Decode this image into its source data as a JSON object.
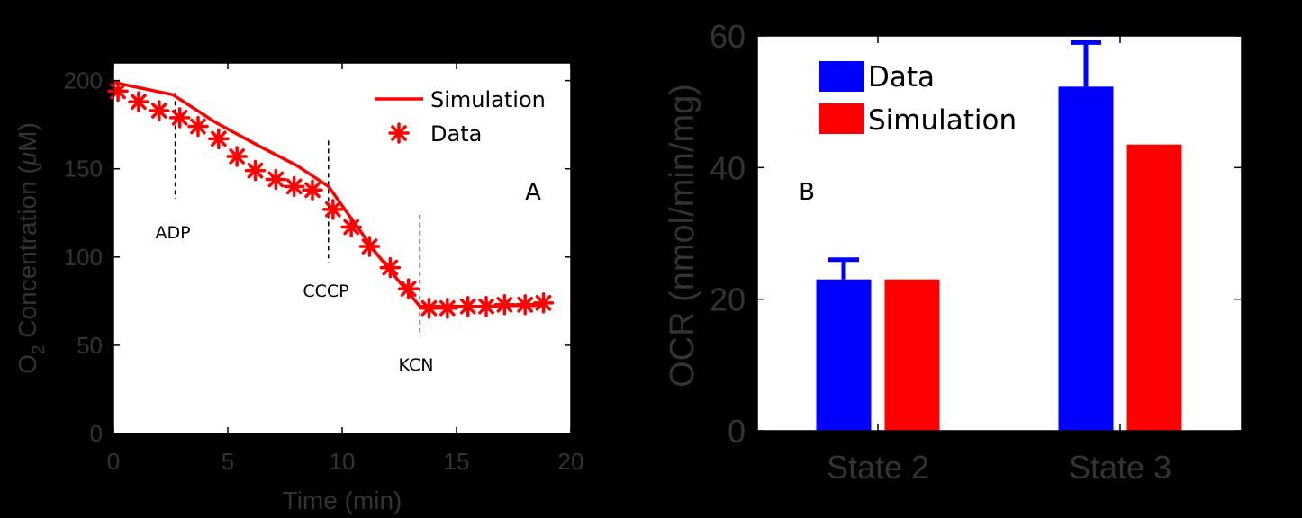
{
  "colors": {
    "background": "#000000",
    "plot_bg": "#ffffff",
    "axis_text": "#333333",
    "data_blue": "#0000ff",
    "sim_red": "#ff0000",
    "marker_red": "#ff0000"
  },
  "chart_data": [
    {
      "type": "line",
      "panel_label": "A",
      "xlabel": "Time (min)",
      "ylabel_parts": {
        "o": "O",
        "sub": "2",
        "rest": " Concentration (",
        "mu": "μ",
        "unit": "M)"
      },
      "xlim": [
        0,
        20
      ],
      "ylim": [
        0,
        210
      ],
      "x_ticks": [
        "0",
        "5",
        "10",
        "15",
        "20"
      ],
      "y_ticks": [
        "0",
        "50",
        "100",
        "150",
        "200"
      ],
      "grid": false,
      "legend_position": "top-right",
      "series": [
        {
          "name": "Simulation",
          "style": "line",
          "x": [
            0,
            2.6,
            4.5,
            6.5,
            8.0,
            9.4,
            10.5,
            11.5,
            12.5,
            13.4,
            14.5,
            16,
            17.5,
            18.8
          ],
          "y": [
            199,
            192,
            176,
            162,
            152,
            140,
            120,
            102,
            86,
            72,
            72,
            72,
            72.5,
            72.5
          ]
        },
        {
          "name": "Data",
          "style": "star-marker",
          "x": [
            0.2,
            1.1,
            2.0,
            2.9,
            3.7,
            4.6,
            5.4,
            6.2,
            7.1,
            7.9,
            8.7,
            9.6,
            10.4,
            11.2,
            12.1,
            12.9,
            13.8,
            14.6,
            15.5,
            16.3,
            17.1,
            18.0,
            18.8
          ],
          "y": [
            194,
            188,
            183,
            179,
            174,
            167,
            157,
            149,
            144,
            140,
            138,
            127,
            117,
            106,
            94,
            82,
            71,
            71,
            72,
            72,
            73,
            73,
            74
          ]
        }
      ],
      "annotations": [
        {
          "label": "ADP",
          "x": 2.7,
          "y_range": [
            133,
            193
          ]
        },
        {
          "label": "CCCP",
          "x": 9.4,
          "y_range": [
            97,
            166
          ]
        },
        {
          "label": "KCN",
          "x": 13.4,
          "y_range": [
            55,
            124
          ]
        }
      ]
    },
    {
      "type": "bar",
      "panel_label": "B",
      "categories": [
        "State 2",
        "State 3"
      ],
      "ylabel": "OCR (nmol/min/mg)",
      "ylim": [
        0,
        60
      ],
      "y_ticks": [
        "0",
        "20",
        "40",
        "60"
      ],
      "grid": false,
      "legend_position": "top-left",
      "series": [
        {
          "name": "Data",
          "values": [
            23,
            52.3
          ],
          "error": [
            3,
            6.7
          ]
        },
        {
          "name": "Simulation",
          "values": [
            23,
            43.5
          ]
        }
      ]
    }
  ]
}
